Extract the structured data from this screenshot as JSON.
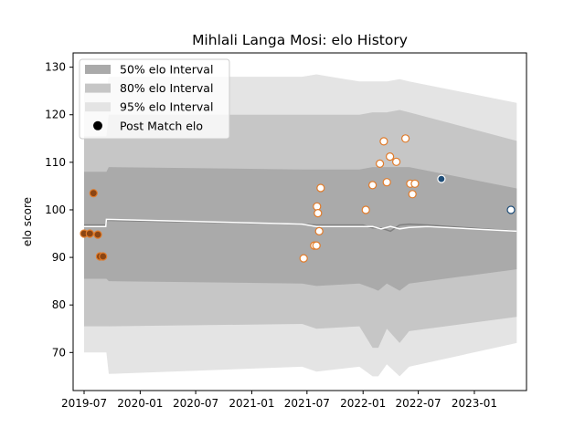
{
  "chart_data": {
    "type": "line",
    "title": "Mihlali Langa Mosi: elo History",
    "xlabel": "",
    "ylabel": "elo score",
    "xlim": [
      "2019-05-26",
      "2023-06-21"
    ],
    "ylim": [
      62,
      133
    ],
    "x_ticks": [
      "2019-07",
      "2020-01",
      "2020-07",
      "2021-01",
      "2021-07",
      "2022-01",
      "2022-07",
      "2023-01"
    ],
    "y_ticks": [
      70,
      80,
      90,
      100,
      110,
      120,
      130
    ],
    "grid": false,
    "legend": {
      "placement": "top-left",
      "entries": [
        "50% elo Interval",
        "80% elo Interval",
        "95% elo Interval",
        "Post Match elo"
      ]
    },
    "colors": {
      "band50": "#aaaaaa",
      "band80": "#c6c6c6",
      "band95": "#e4e4e4",
      "mean_line": "#ffffff",
      "median_line": "#808080",
      "point_fill": "#ffffff",
      "point_edge_orange": "#e07b2a",
      "point_edge_blue": "#1f4e79",
      "point_filled": "#8b4513"
    },
    "bands": {
      "x": [
        "2019-07-01",
        "2019-09-12",
        "2019-09-20",
        "2021-06-15",
        "2021-08-01",
        "2021-12-20",
        "2022-02-01",
        "2022-02-20",
        "2022-03-20",
        "2022-05-01",
        "2022-06-01",
        "2023-05-20"
      ],
      "p95_low": [
        70,
        70,
        65.5,
        67,
        66,
        67,
        65,
        65,
        67.5,
        65,
        67,
        72
      ],
      "p95_high": [
        125,
        125,
        128,
        128,
        128.5,
        127,
        127,
        127,
        127,
        127.5,
        127,
        122.5
      ],
      "p80_low": [
        75.5,
        75.5,
        75.5,
        76,
        75,
        75.5,
        71,
        71,
        75,
        72,
        74.5,
        77.5
      ],
      "p80_high": [
        115.5,
        115.5,
        120,
        120,
        120,
        120,
        120.5,
        120.5,
        120.5,
        121,
        120.5,
        114.5
      ],
      "p50_low": [
        85.5,
        85.5,
        85,
        84.5,
        84,
        84.5,
        83.5,
        83,
        84.5,
        83,
        84.5,
        87.5
      ],
      "p50_high": [
        108,
        108,
        109,
        108.5,
        108.5,
        108.5,
        109,
        109,
        109,
        109,
        109,
        104.5
      ]
    },
    "mean_line": {
      "x": [
        "2019-07-01",
        "2019-09-10",
        "2019-09-12",
        "2021-06-15",
        "2021-08-01",
        "2022-02-01",
        "2022-03-01",
        "2022-04-01",
        "2022-05-01",
        "2022-06-01",
        "2022-08-01",
        "2023-05-20"
      ],
      "y": [
        96.5,
        96.5,
        98,
        97,
        96.5,
        96.5,
        96,
        96.5,
        96,
        96.3,
        96.5,
        95.5
      ]
    },
    "median_line": {
      "x": [
        "2019-07-01",
        "2019-09-10",
        "2019-09-12",
        "2021-06-15",
        "2021-08-01",
        "2022-01-01",
        "2022-02-01",
        "2022-03-01",
        "2022-04-01",
        "2022-05-01",
        "2022-06-01",
        "2022-08-01",
        "2023-05-20"
      ],
      "y": [
        96.8,
        96.8,
        97.8,
        97,
        96.8,
        96.8,
        96.2,
        96.2,
        95.5,
        96.8,
        97,
        96.8,
        95.5
      ]
    },
    "points": [
      {
        "x": "2019-07-01",
        "y": 95,
        "style": "filled"
      },
      {
        "x": "2019-07-20",
        "y": 95,
        "style": "filled"
      },
      {
        "x": "2019-08-01",
        "y": 103.5,
        "style": "filled"
      },
      {
        "x": "2019-08-15",
        "y": 94.8,
        "style": "filled"
      },
      {
        "x": "2019-08-22",
        "y": 90.2,
        "style": "filled"
      },
      {
        "x": "2019-09-01",
        "y": 90.2,
        "style": "filled"
      },
      {
        "x": "2021-06-20",
        "y": 89.8,
        "style": "orange"
      },
      {
        "x": "2021-07-25",
        "y": 92.5,
        "style": "orange"
      },
      {
        "x": "2021-08-01",
        "y": 92.5,
        "style": "orange"
      },
      {
        "x": "2021-08-03",
        "y": 100.7,
        "style": "orange"
      },
      {
        "x": "2021-08-06",
        "y": 99.3,
        "style": "orange"
      },
      {
        "x": "2021-08-10",
        "y": 95.5,
        "style": "orange"
      },
      {
        "x": "2021-08-15",
        "y": 104.6,
        "style": "orange"
      },
      {
        "x": "2022-01-10",
        "y": 100,
        "style": "orange"
      },
      {
        "x": "2022-02-01",
        "y": 105.2,
        "style": "orange"
      },
      {
        "x": "2022-02-25",
        "y": 109.7,
        "style": "orange"
      },
      {
        "x": "2022-03-10",
        "y": 114.4,
        "style": "orange"
      },
      {
        "x": "2022-03-20",
        "y": 105.8,
        "style": "orange"
      },
      {
        "x": "2022-03-30",
        "y": 111.2,
        "style": "orange"
      },
      {
        "x": "2022-04-20",
        "y": 110.1,
        "style": "orange"
      },
      {
        "x": "2022-05-20",
        "y": 115,
        "style": "orange"
      },
      {
        "x": "2022-06-05",
        "y": 105.5,
        "style": "orange"
      },
      {
        "x": "2022-06-12",
        "y": 103.3,
        "style": "orange"
      },
      {
        "x": "2022-06-20",
        "y": 105.5,
        "style": "orange"
      },
      {
        "x": "2022-09-15",
        "y": 106.5,
        "style": "blue"
      },
      {
        "x": "2023-05-01",
        "y": 100,
        "style": "blue-open"
      }
    ]
  }
}
